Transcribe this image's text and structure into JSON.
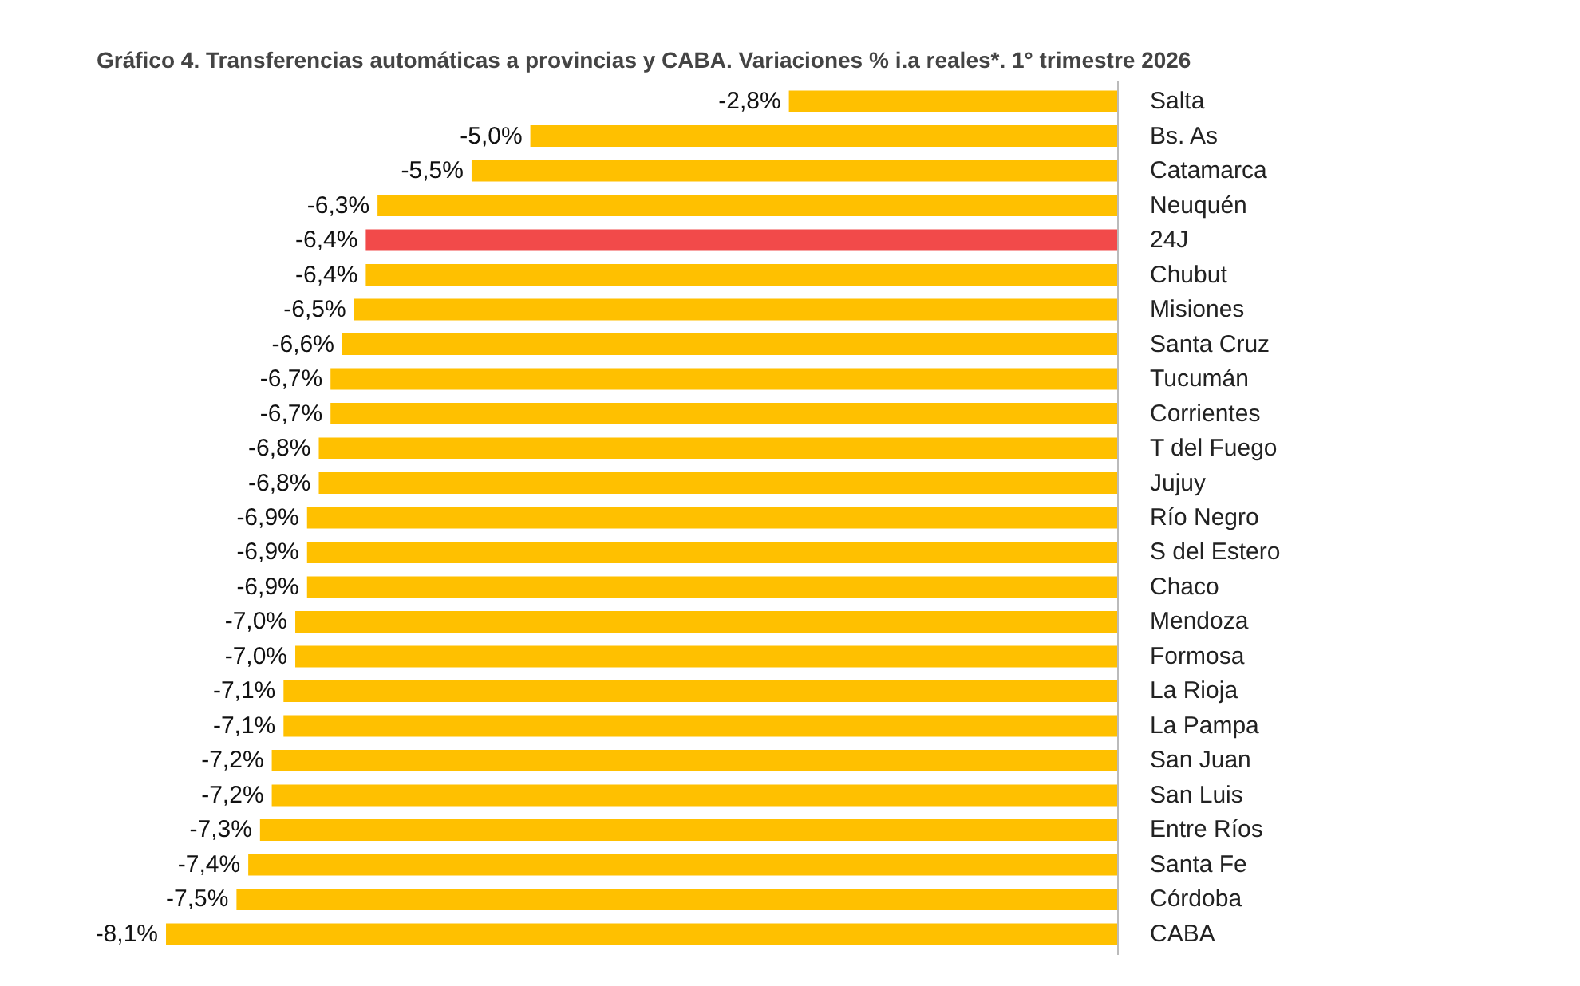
{
  "chart_data": {
    "type": "bar",
    "orientation": "horizontal",
    "title": "Gráfico 4. Transferencias automáticas a provincias y CABA. Variaciones % i.a reales*. 1° trimestre 2026",
    "categories": [
      "Salta",
      "Bs. As",
      "Catamarca",
      "Neuquén",
      "24J",
      "Chubut",
      "Misiones",
      "Santa Cruz",
      "Tucumán",
      "Corrientes",
      "T del Fuego",
      "Jujuy",
      "Río Negro",
      "S del Estero",
      "Chaco",
      "Mendoza",
      "Formosa",
      "La Rioja",
      "La Pampa",
      "San Juan",
      "San Luis",
      "Entre Ríos",
      "Santa Fe",
      "Córdoba",
      "CABA"
    ],
    "values": [
      -2.8,
      -5.0,
      -5.5,
      -6.3,
      -6.4,
      -6.4,
      -6.5,
      -6.6,
      -6.7,
      -6.7,
      -6.8,
      -6.8,
      -6.9,
      -6.9,
      -6.9,
      -7.0,
      -7.0,
      -7.1,
      -7.1,
      -7.2,
      -7.2,
      -7.3,
      -7.4,
      -7.5,
      -8.1
    ],
    "value_labels": [
      "-2,8%",
      "-5,0%",
      "-5,5%",
      "-6,3%",
      "-6,4%",
      "-6,4%",
      "-6,5%",
      "-6,6%",
      "-6,7%",
      "-6,7%",
      "-6,8%",
      "-6,8%",
      "-6,9%",
      "-6,9%",
      "-6,9%",
      "-7,0%",
      "-7,0%",
      "-7,1%",
      "-7,1%",
      "-7,2%",
      "-7,2%",
      "-7,3%",
      "-7,4%",
      "-7,5%",
      "-8,1%"
    ],
    "colors": [
      "#ffc000",
      "#ffc000",
      "#ffc000",
      "#ffc000",
      "#f24a4a",
      "#ffc000",
      "#ffc000",
      "#ffc000",
      "#ffc000",
      "#ffc000",
      "#ffc000",
      "#ffc000",
      "#ffc000",
      "#ffc000",
      "#ffc000",
      "#ffc000",
      "#ffc000",
      "#ffc000",
      "#ffc000",
      "#ffc000",
      "#ffc000",
      "#ffc000",
      "#ffc000",
      "#ffc000",
      "#ffc000"
    ],
    "grid": false
  }
}
